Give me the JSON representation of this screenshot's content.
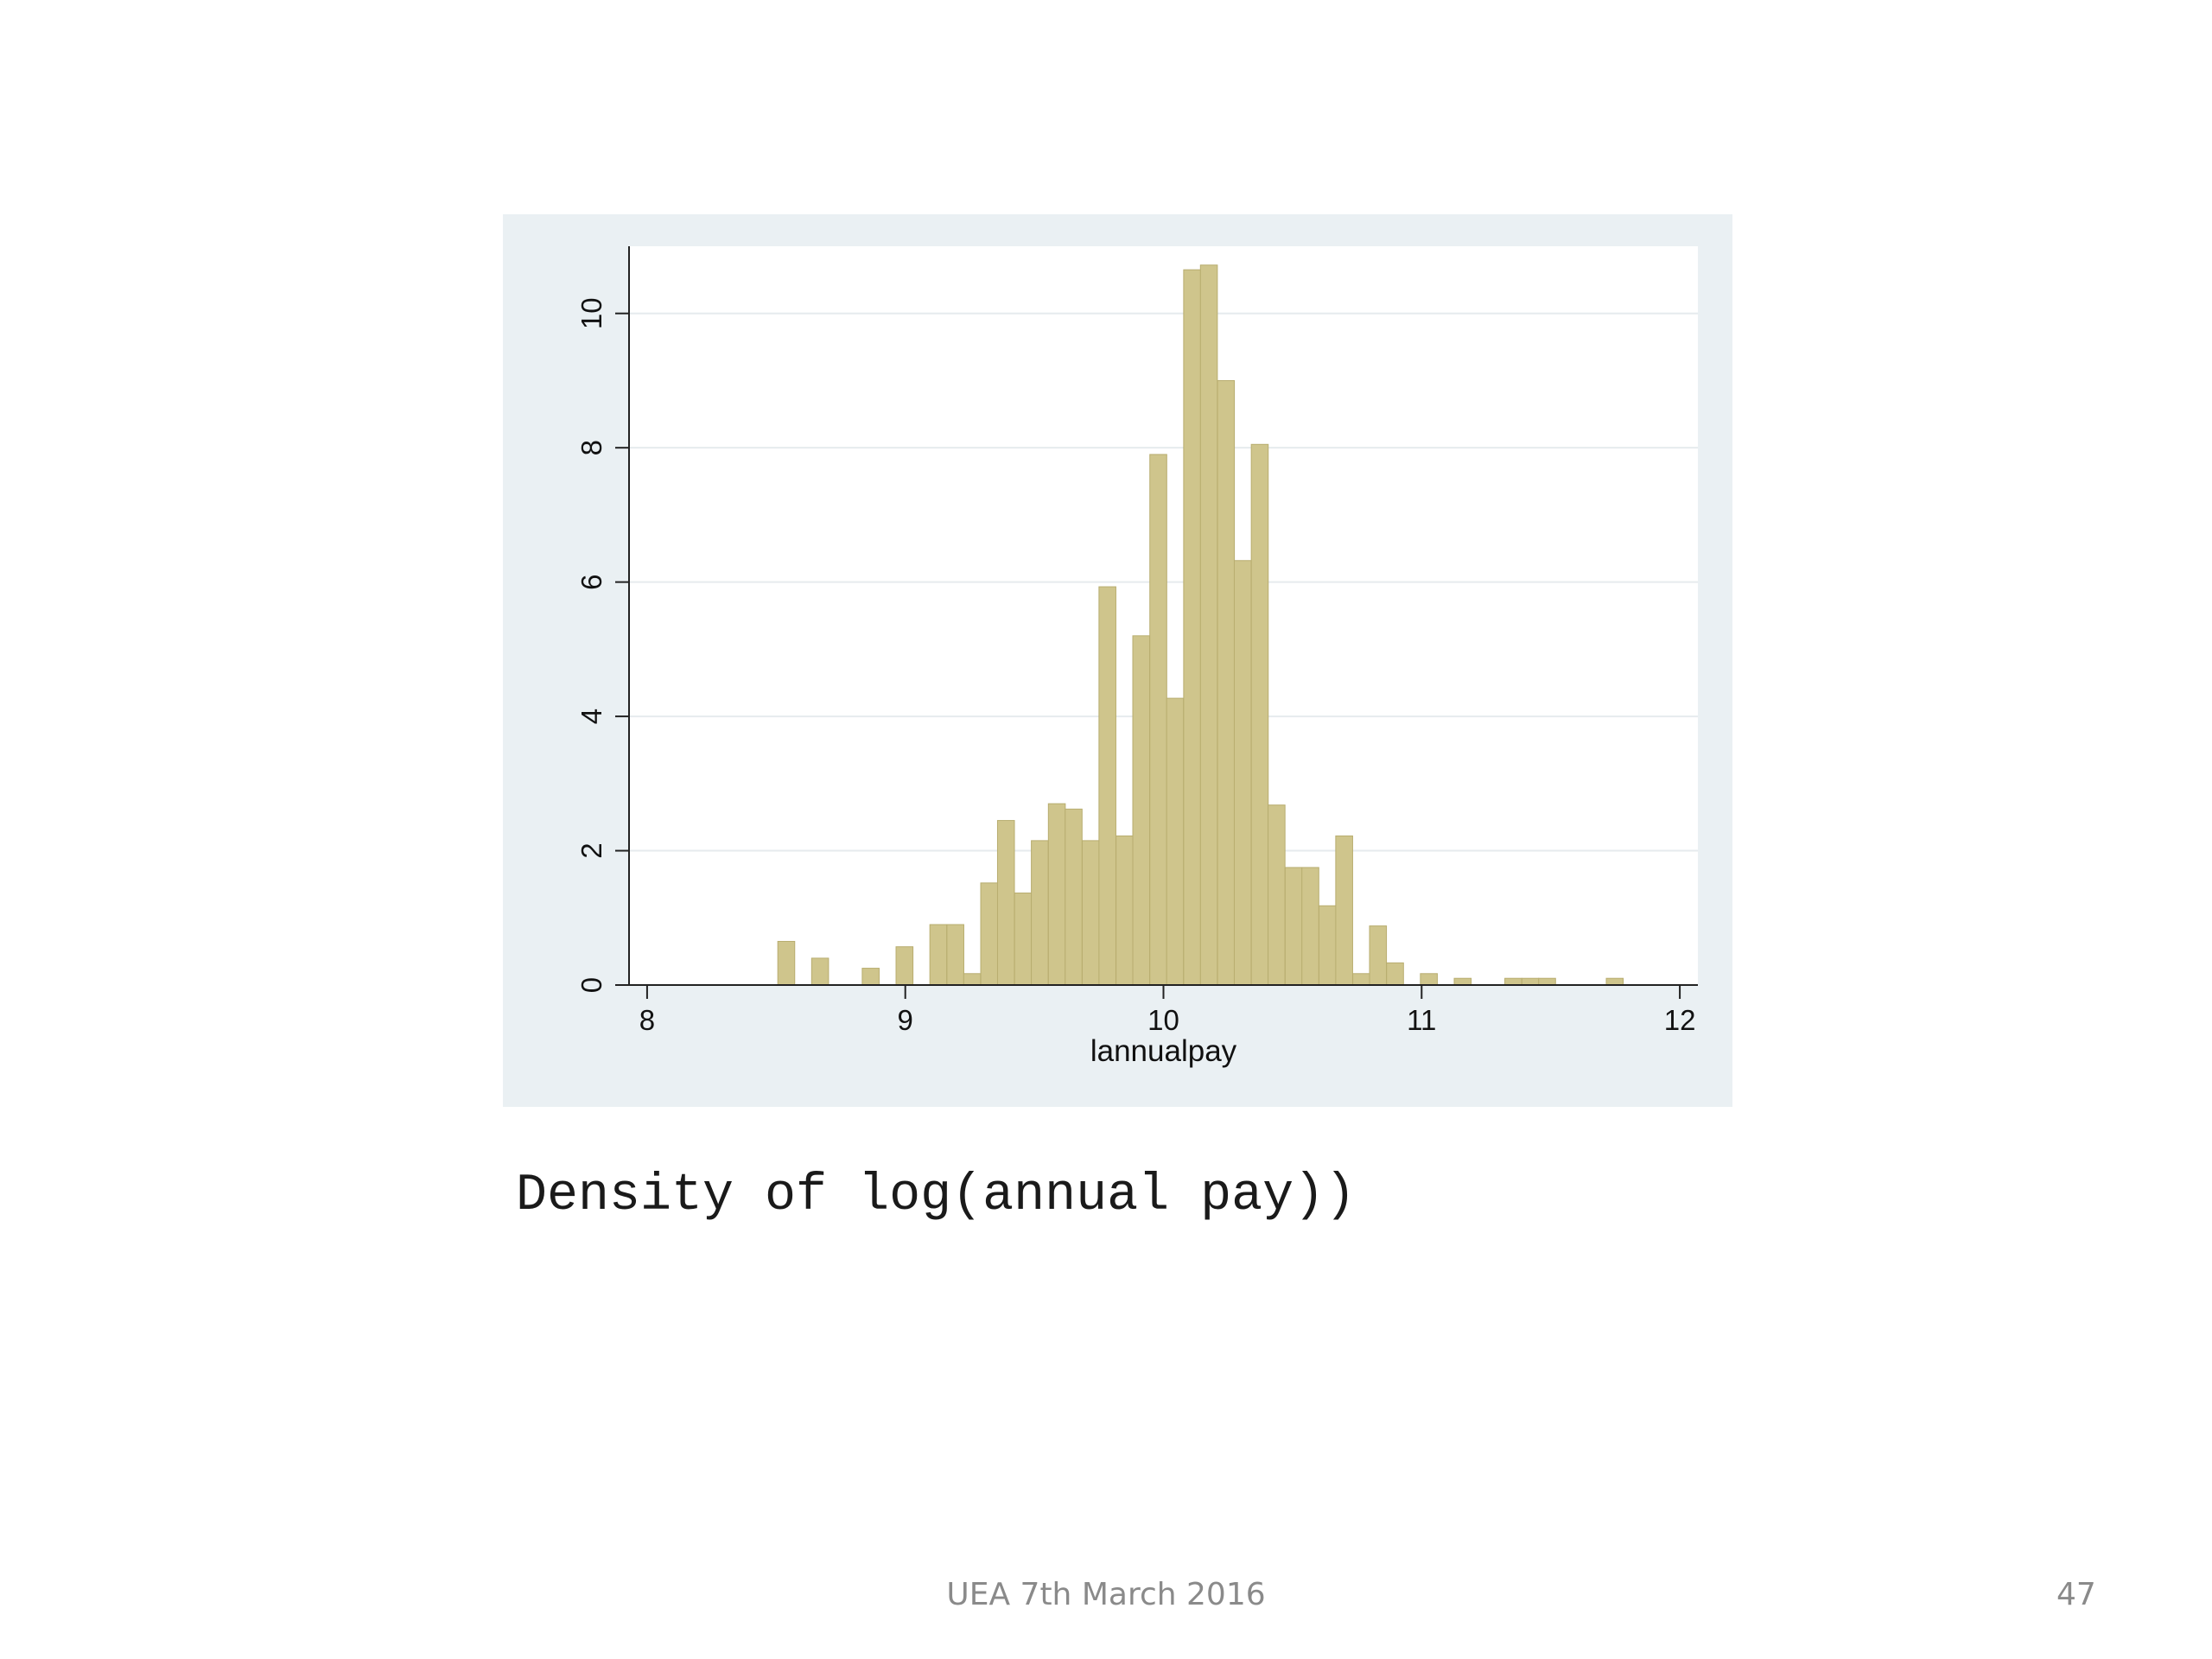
{
  "slide": {
    "caption": "Density of log(annual pay))",
    "footer": "UEA 7th March 2016",
    "page_number": "47"
  },
  "colors": {
    "bar_fill": "#cfc58c",
    "bar_stroke": "#b8ad6f",
    "panel_bg": "#eaf0f3",
    "plot_bg": "#ffffff",
    "grid": "#e6ebee",
    "axis": "#222222"
  },
  "chart_data": {
    "type": "histogram",
    "title": "",
    "xlabel": "lannualpay",
    "ylabel": "",
    "xlim": [
      7.93,
      12.07
    ],
    "ylim": [
      0,
      11
    ],
    "x_ticks": [
      8,
      9,
      10,
      11,
      12
    ],
    "y_ticks": [
      0,
      2,
      4,
      6,
      8,
      10
    ],
    "grid": true,
    "bin_width": 0.0655,
    "bins": [
      {
        "x": 8.539,
        "y": 0.65
      },
      {
        "x": 8.67,
        "y": 0.4
      },
      {
        "x": 8.866,
        "y": 0.25
      },
      {
        "x": 8.997,
        "y": 0.57
      },
      {
        "x": 9.128,
        "y": 0.9
      },
      {
        "x": 9.194,
        "y": 0.9
      },
      {
        "x": 9.259,
        "y": 0.17
      },
      {
        "x": 9.325,
        "y": 1.52
      },
      {
        "x": 9.39,
        "y": 2.45
      },
      {
        "x": 9.456,
        "y": 1.37
      },
      {
        "x": 9.521,
        "y": 2.15
      },
      {
        "x": 9.587,
        "y": 2.7
      },
      {
        "x": 9.652,
        "y": 2.62
      },
      {
        "x": 9.718,
        "y": 2.15
      },
      {
        "x": 9.783,
        "y": 5.93
      },
      {
        "x": 9.849,
        "y": 2.22
      },
      {
        "x": 9.914,
        "y": 5.2
      },
      {
        "x": 9.98,
        "y": 7.9
      },
      {
        "x": 10.045,
        "y": 4.27
      },
      {
        "x": 10.111,
        "y": 10.65
      },
      {
        "x": 10.176,
        "y": 10.72
      },
      {
        "x": 10.242,
        "y": 9.0
      },
      {
        "x": 10.307,
        "y": 6.32
      },
      {
        "x": 10.373,
        "y": 8.05
      },
      {
        "x": 10.438,
        "y": 2.68
      },
      {
        "x": 10.504,
        "y": 1.75
      },
      {
        "x": 10.569,
        "y": 1.75
      },
      {
        "x": 10.635,
        "y": 1.18
      },
      {
        "x": 10.7,
        "y": 2.22
      },
      {
        "x": 10.766,
        "y": 0.17
      },
      {
        "x": 10.831,
        "y": 0.88
      },
      {
        "x": 10.897,
        "y": 0.33
      },
      {
        "x": 11.028,
        "y": 0.17
      },
      {
        "x": 11.159,
        "y": 0.1
      },
      {
        "x": 11.355,
        "y": 0.1
      },
      {
        "x": 11.421,
        "y": 0.1
      },
      {
        "x": 11.486,
        "y": 0.1
      },
      {
        "x": 11.748,
        "y": 0.1
      }
    ]
  }
}
